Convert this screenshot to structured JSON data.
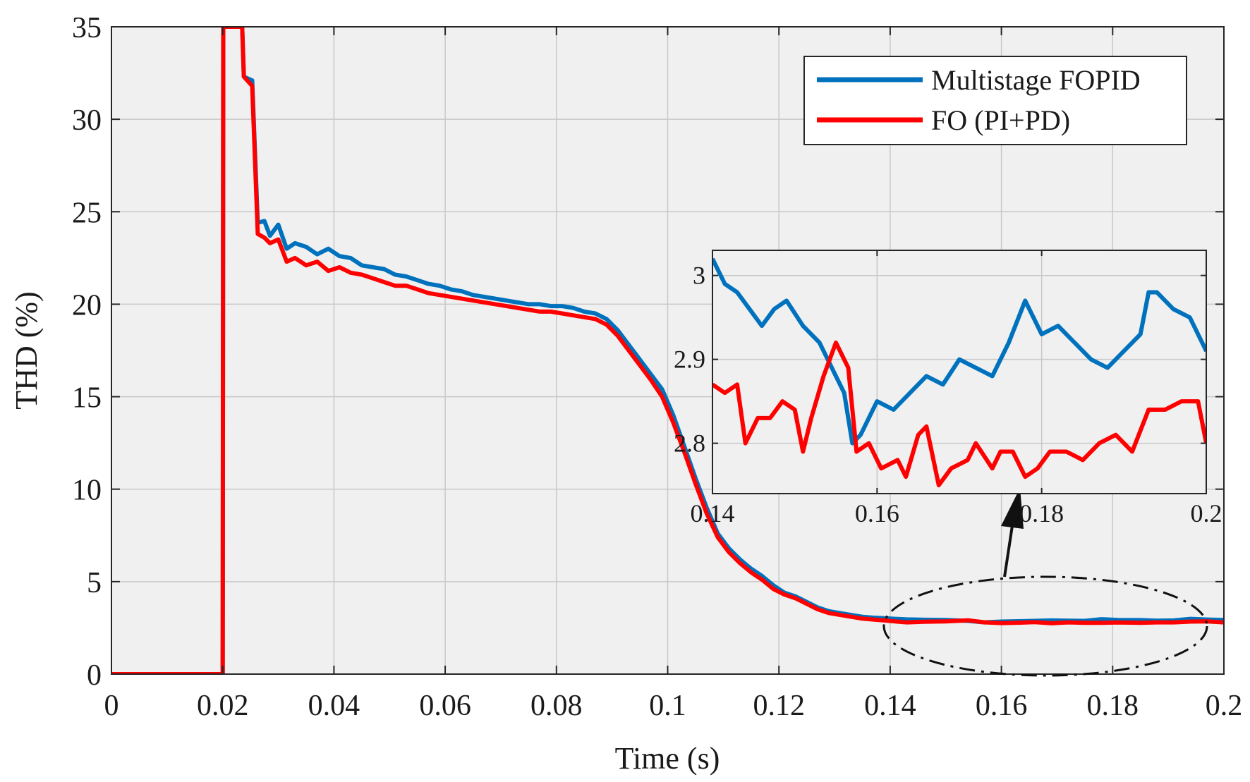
{
  "chart_data": [
    {
      "type": "line",
      "panel": "main",
      "xlabel": "Time (s)",
      "ylabel": "THD (%)",
      "xlim": [
        0,
        0.2
      ],
      "ylim": [
        0,
        35
      ],
      "grid": true,
      "legend_position": "top-right",
      "xticks": [
        0,
        0.02,
        0.04,
        0.06,
        0.08,
        0.1,
        0.12,
        0.14,
        0.16,
        0.18,
        0.2
      ],
      "xtick_labels": [
        "0",
        "0.02",
        "0.04",
        "0.06",
        "0.08",
        "0.1",
        "0.12",
        "0.14",
        "0.16",
        "0.18",
        "0.2"
      ],
      "yticks": [
        0,
        5,
        10,
        15,
        20,
        25,
        30,
        35
      ],
      "ytick_labels": [
        "0",
        "5",
        "10",
        "15",
        "20",
        "25",
        "30",
        "35"
      ],
      "series": [
        {
          "name": "Multistage FOPID",
          "color": "#0072BD",
          "points": [
            [
              0,
              0
            ],
            [
              0.02,
              0
            ],
            [
              0.0201,
              35
            ],
            [
              0.0235,
              35
            ],
            [
              0.0238,
              32.3
            ],
            [
              0.0253,
              32.1
            ],
            [
              0.0263,
              24.4
            ],
            [
              0.0275,
              24.5
            ],
            [
              0.0285,
              23.7
            ],
            [
              0.03,
              24.3
            ],
            [
              0.0315,
              23.0
            ],
            [
              0.033,
              23.3
            ],
            [
              0.035,
              23.1
            ],
            [
              0.037,
              22.7
            ],
            [
              0.039,
              23.0
            ],
            [
              0.041,
              22.6
            ],
            [
              0.043,
              22.5
            ],
            [
              0.045,
              22.1
            ],
            [
              0.047,
              22.0
            ],
            [
              0.049,
              21.9
            ],
            [
              0.051,
              21.6
            ],
            [
              0.053,
              21.5
            ],
            [
              0.055,
              21.3
            ],
            [
              0.057,
              21.1
            ],
            [
              0.059,
              21.0
            ],
            [
              0.061,
              20.8
            ],
            [
              0.063,
              20.7
            ],
            [
              0.065,
              20.5
            ],
            [
              0.067,
              20.4
            ],
            [
              0.069,
              20.3
            ],
            [
              0.071,
              20.2
            ],
            [
              0.073,
              20.1
            ],
            [
              0.075,
              20.0
            ],
            [
              0.077,
              20.0
            ],
            [
              0.079,
              19.9
            ],
            [
              0.081,
              19.9
            ],
            [
              0.083,
              19.8
            ],
            [
              0.085,
              19.6
            ],
            [
              0.087,
              19.5
            ],
            [
              0.089,
              19.2
            ],
            [
              0.091,
              18.6
            ],
            [
              0.093,
              17.8
            ],
            [
              0.095,
              17.0
            ],
            [
              0.097,
              16.2
            ],
            [
              0.099,
              15.4
            ],
            [
              0.101,
              14.0
            ],
            [
              0.103,
              12.3
            ],
            [
              0.105,
              10.6
            ],
            [
              0.107,
              9.0
            ],
            [
              0.109,
              7.6
            ],
            [
              0.111,
              6.8
            ],
            [
              0.113,
              6.2
            ],
            [
              0.115,
              5.7
            ],
            [
              0.117,
              5.3
            ],
            [
              0.119,
              4.8
            ],
            [
              0.121,
              4.4
            ],
            [
              0.123,
              4.2
            ],
            [
              0.125,
              3.9
            ],
            [
              0.127,
              3.6
            ],
            [
              0.129,
              3.4
            ],
            [
              0.131,
              3.3
            ],
            [
              0.133,
              3.2
            ],
            [
              0.135,
              3.1
            ],
            [
              0.137,
              3.05
            ],
            [
              0.139,
              3.02
            ],
            [
              0.14,
              3.0
            ],
            [
              0.143,
              2.96
            ],
            [
              0.146,
              2.94
            ],
            [
              0.15,
              2.93
            ],
            [
              0.154,
              2.88
            ],
            [
              0.157,
              2.8
            ],
            [
              0.16,
              2.84
            ],
            [
              0.163,
              2.86
            ],
            [
              0.166,
              2.88
            ],
            [
              0.169,
              2.9
            ],
            [
              0.172,
              2.89
            ],
            [
              0.175,
              2.88
            ],
            [
              0.178,
              2.97
            ],
            [
              0.181,
              2.93
            ],
            [
              0.185,
              2.92
            ],
            [
              0.188,
              2.89
            ],
            [
              0.191,
              2.9
            ],
            [
              0.194,
              2.99
            ],
            [
              0.197,
              2.95
            ],
            [
              0.2,
              2.93
            ]
          ]
        },
        {
          "name": "FO (PI+PD)",
          "color": "#FF0000",
          "points": [
            [
              0,
              0
            ],
            [
              0.02,
              0
            ],
            [
              0.0201,
              35
            ],
            [
              0.0235,
              35
            ],
            [
              0.0238,
              32.3
            ],
            [
              0.0253,
              31.8
            ],
            [
              0.0263,
              23.8
            ],
            [
              0.0275,
              23.6
            ],
            [
              0.0285,
              23.3
            ],
            [
              0.03,
              23.5
            ],
            [
              0.0315,
              22.3
            ],
            [
              0.033,
              22.5
            ],
            [
              0.035,
              22.1
            ],
            [
              0.037,
              22.3
            ],
            [
              0.039,
              21.8
            ],
            [
              0.041,
              22.0
            ],
            [
              0.043,
              21.7
            ],
            [
              0.045,
              21.6
            ],
            [
              0.047,
              21.4
            ],
            [
              0.049,
              21.2
            ],
            [
              0.051,
              21.0
            ],
            [
              0.053,
              21.0
            ],
            [
              0.055,
              20.8
            ],
            [
              0.057,
              20.6
            ],
            [
              0.059,
              20.5
            ],
            [
              0.061,
              20.4
            ],
            [
              0.063,
              20.3
            ],
            [
              0.065,
              20.2
            ],
            [
              0.067,
              20.1
            ],
            [
              0.069,
              20.0
            ],
            [
              0.071,
              19.9
            ],
            [
              0.073,
              19.8
            ],
            [
              0.075,
              19.7
            ],
            [
              0.077,
              19.6
            ],
            [
              0.079,
              19.6
            ],
            [
              0.081,
              19.5
            ],
            [
              0.083,
              19.4
            ],
            [
              0.085,
              19.3
            ],
            [
              0.087,
              19.2
            ],
            [
              0.089,
              18.9
            ],
            [
              0.091,
              18.3
            ],
            [
              0.093,
              17.5
            ],
            [
              0.095,
              16.7
            ],
            [
              0.097,
              15.9
            ],
            [
              0.099,
              15.0
            ],
            [
              0.101,
              13.6
            ],
            [
              0.103,
              12.0
            ],
            [
              0.105,
              10.3
            ],
            [
              0.107,
              8.7
            ],
            [
              0.109,
              7.4
            ],
            [
              0.111,
              6.6
            ],
            [
              0.113,
              6.0
            ],
            [
              0.115,
              5.5
            ],
            [
              0.117,
              5.1
            ],
            [
              0.119,
              4.6
            ],
            [
              0.121,
              4.3
            ],
            [
              0.123,
              4.1
            ],
            [
              0.125,
              3.8
            ],
            [
              0.127,
              3.5
            ],
            [
              0.129,
              3.3
            ],
            [
              0.131,
              3.2
            ],
            [
              0.133,
              3.1
            ],
            [
              0.135,
              3.0
            ],
            [
              0.137,
              2.95
            ],
            [
              0.139,
              2.9
            ],
            [
              0.14,
              2.87
            ],
            [
              0.143,
              2.8
            ],
            [
              0.146,
              2.83
            ],
            [
              0.15,
              2.85
            ],
            [
              0.154,
              2.91
            ],
            [
              0.157,
              2.8
            ],
            [
              0.16,
              2.76
            ],
            [
              0.163,
              2.78
            ],
            [
              0.166,
              2.81
            ],
            [
              0.169,
              2.75
            ],
            [
              0.172,
              2.8
            ],
            [
              0.175,
              2.77
            ],
            [
              0.178,
              2.77
            ],
            [
              0.181,
              2.79
            ],
            [
              0.185,
              2.77
            ],
            [
              0.188,
              2.8
            ],
            [
              0.191,
              2.8
            ],
            [
              0.194,
              2.84
            ],
            [
              0.197,
              2.85
            ],
            [
              0.2,
              2.8
            ]
          ]
        }
      ]
    },
    {
      "type": "line",
      "panel": "inset",
      "xlim": [
        0.14,
        0.2
      ],
      "ylim": [
        2.74,
        3.03
      ],
      "grid": true,
      "xticks": [
        0.14,
        0.16,
        0.18,
        0.2
      ],
      "xtick_labels": [
        "0.14",
        "0.16",
        "0.18",
        "0.2"
      ],
      "yticks": [
        2.8,
        2.9,
        3.0
      ],
      "ytick_labels": [
        "2.8",
        "2.9",
        "3"
      ],
      "series": [
        {
          "name": "Multistage FOPID",
          "color": "#0072BD",
          "points": [
            [
              0.14,
              3.02
            ],
            [
              0.1415,
              2.99
            ],
            [
              0.143,
              2.98
            ],
            [
              0.1445,
              2.96
            ],
            [
              0.146,
              2.94
            ],
            [
              0.1475,
              2.96
            ],
            [
              0.149,
              2.97
            ],
            [
              0.151,
              2.94
            ],
            [
              0.153,
              2.92
            ],
            [
              0.155,
              2.88
            ],
            [
              0.156,
              2.86
            ],
            [
              0.157,
              2.8
            ],
            [
              0.158,
              2.81
            ],
            [
              0.16,
              2.85
            ],
            [
              0.162,
              2.84
            ],
            [
              0.164,
              2.86
            ],
            [
              0.166,
              2.88
            ],
            [
              0.168,
              2.87
            ],
            [
              0.17,
              2.9
            ],
            [
              0.172,
              2.89
            ],
            [
              0.174,
              2.88
            ],
            [
              0.176,
              2.92
            ],
            [
              0.178,
              2.97
            ],
            [
              0.179,
              2.95
            ],
            [
              0.18,
              2.93
            ],
            [
              0.182,
              2.94
            ],
            [
              0.184,
              2.92
            ],
            [
              0.186,
              2.9
            ],
            [
              0.188,
              2.89
            ],
            [
              0.19,
              2.91
            ],
            [
              0.192,
              2.93
            ],
            [
              0.193,
              2.98
            ],
            [
              0.194,
              2.98
            ],
            [
              0.196,
              2.96
            ],
            [
              0.198,
              2.95
            ],
            [
              0.2,
              2.91
            ]
          ]
        },
        {
          "name": "FO (PI+PD)",
          "color": "#FF0000",
          "points": [
            [
              0.14,
              2.87
            ],
            [
              0.1415,
              2.86
            ],
            [
              0.143,
              2.87
            ],
            [
              0.144,
              2.8
            ],
            [
              0.1455,
              2.83
            ],
            [
              0.147,
              2.83
            ],
            [
              0.1485,
              2.85
            ],
            [
              0.15,
              2.84
            ],
            [
              0.151,
              2.79
            ],
            [
              0.152,
              2.83
            ],
            [
              0.1535,
              2.88
            ],
            [
              0.155,
              2.92
            ],
            [
              0.1565,
              2.89
            ],
            [
              0.1575,
              2.79
            ],
            [
              0.159,
              2.8
            ],
            [
              0.1605,
              2.77
            ],
            [
              0.1625,
              2.78
            ],
            [
              0.1635,
              2.76
            ],
            [
              0.165,
              2.81
            ],
            [
              0.166,
              2.82
            ],
            [
              0.1675,
              2.75
            ],
            [
              0.169,
              2.77
            ],
            [
              0.171,
              2.78
            ],
            [
              0.172,
              2.8
            ],
            [
              0.174,
              2.77
            ],
            [
              0.175,
              2.79
            ],
            [
              0.1765,
              2.79
            ],
            [
              0.178,
              2.76
            ],
            [
              0.1795,
              2.77
            ],
            [
              0.181,
              2.79
            ],
            [
              0.183,
              2.79
            ],
            [
              0.185,
              2.78
            ],
            [
              0.187,
              2.8
            ],
            [
              0.189,
              2.81
            ],
            [
              0.191,
              2.79
            ],
            [
              0.193,
              2.84
            ],
            [
              0.195,
              2.84
            ],
            [
              0.197,
              2.85
            ],
            [
              0.199,
              2.85
            ],
            [
              0.2,
              2.8
            ]
          ]
        }
      ]
    }
  ]
}
